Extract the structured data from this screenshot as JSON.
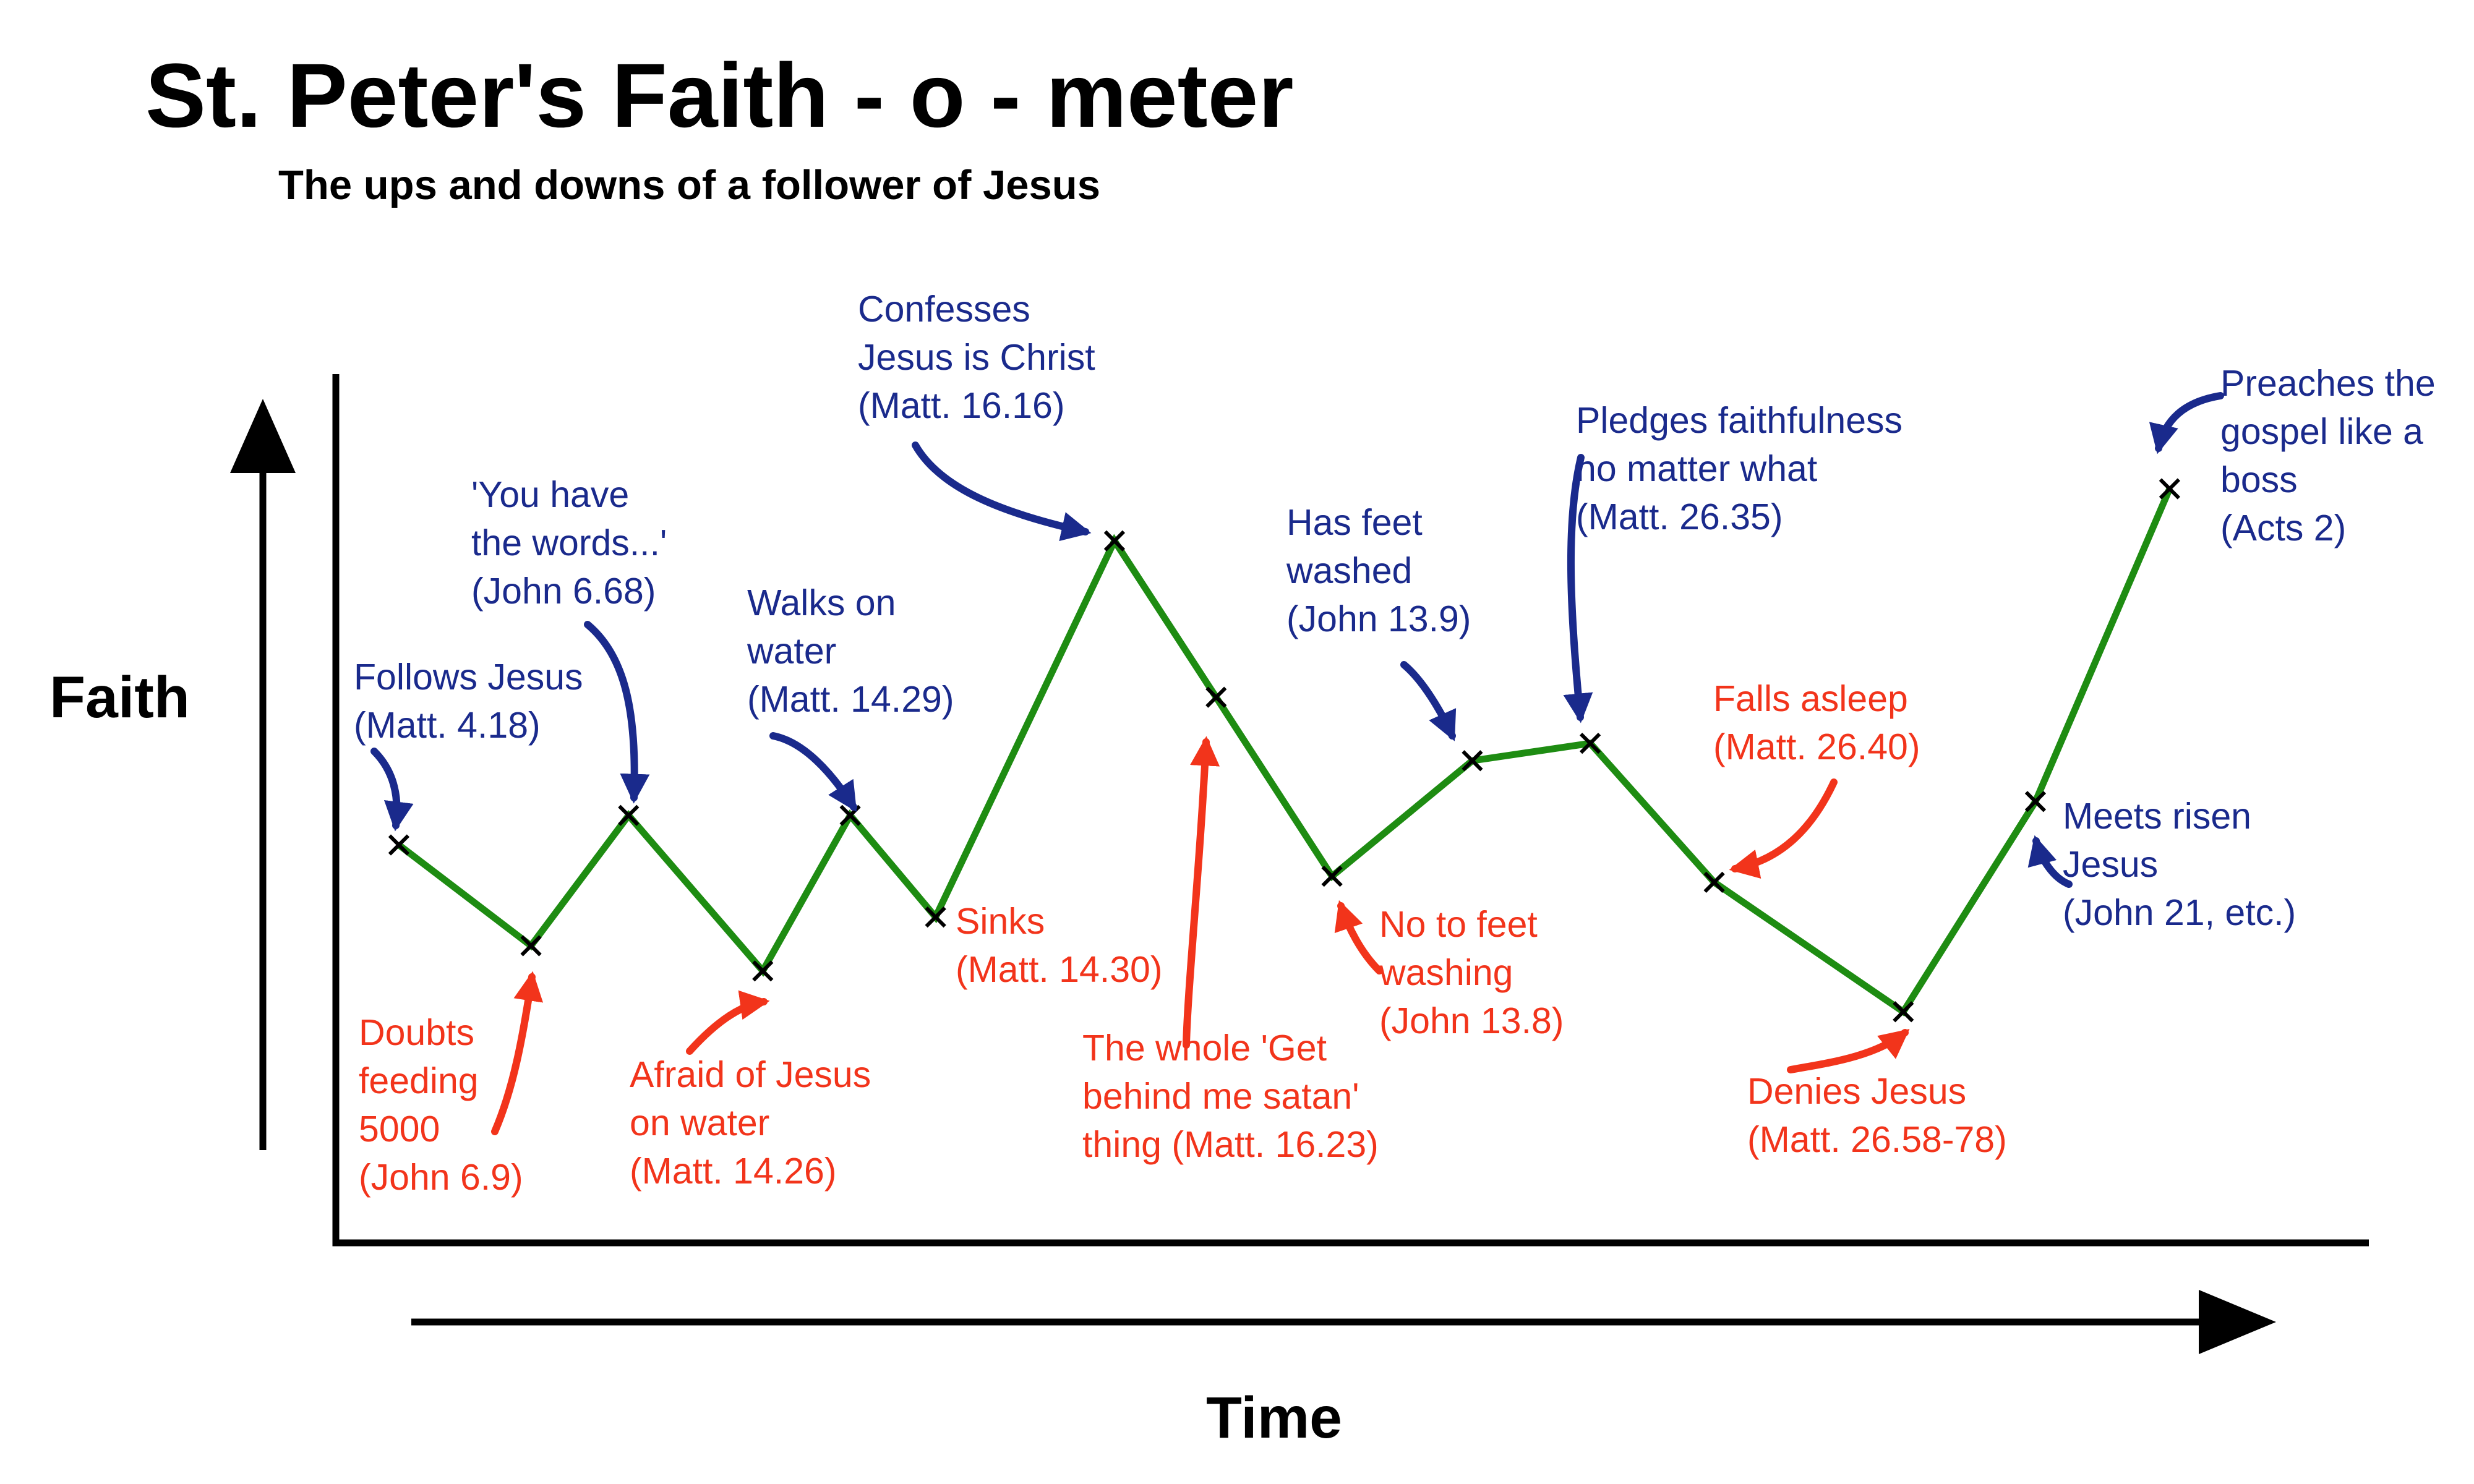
{
  "chart_data": {
    "type": "line",
    "title": "St. Peter's Faith - o - meter",
    "subtitle": "The ups and downs of a follower of Jesus",
    "xlabel": "Time",
    "ylabel": "Faith",
    "grid": false,
    "legend": "none",
    "x_ticks_shown": false,
    "y_ticks_shown": false,
    "line_color": "#1e8c12",
    "marker": "x",
    "high_color": "#1a2a8c",
    "low_color": "#f2341b",
    "points": [
      {
        "label": "Follows Jesus\n(Matt. 4.18)",
        "kind": "high",
        "x": 0.031,
        "y": 0.458
      },
      {
        "label": "Doubts\nfeeding\n5000\n(John 6.9)",
        "kind": "low",
        "x": 0.096,
        "y": 0.342
      },
      {
        "label": "'You have\nthe words...'\n(John 6.68)",
        "kind": "high",
        "x": 0.144,
        "y": 0.492
      },
      {
        "label": "Afraid of Jesus\non water\n(Matt. 14.26)",
        "kind": "low",
        "x": 0.21,
        "y": 0.313
      },
      {
        "label": "Walks on\nwater\n(Matt. 14.29)",
        "kind": "high",
        "x": 0.253,
        "y": 0.492
      },
      {
        "label": "Sinks\n(Matt. 14.30)",
        "kind": "low",
        "x": 0.295,
        "y": 0.375
      },
      {
        "label": "Confesses\nJesus is Christ\n(Matt. 16.16)",
        "kind": "high",
        "x": 0.383,
        "y": 0.808
      },
      {
        "label": "The whole 'Get\nbehind me satan'\nthing (Matt. 16.23)",
        "kind": "low",
        "x": 0.433,
        "y": 0.628
      },
      {
        "label": "No to feet\nwashing\n(John 13.8)",
        "kind": "low",
        "x": 0.49,
        "y": 0.422
      },
      {
        "label": "Has feet\nwashed\n(John 13.9)",
        "kind": "high",
        "x": 0.559,
        "y": 0.555
      },
      {
        "label": "Pledges faithfulness\nno matter what\n(Matt. 26.35)",
        "kind": "high",
        "x": 0.617,
        "y": 0.575
      },
      {
        "label": "Falls asleep\n(Matt. 26.40)",
        "kind": "low",
        "x": 0.678,
        "y": 0.415
      },
      {
        "label": "Denies Jesus\n(Matt. 26.58-78)",
        "kind": "low",
        "x": 0.771,
        "y": 0.266
      },
      {
        "label": "Meets risen\nJesus\n(John 21, etc.)",
        "kind": "high",
        "x": 0.836,
        "y": 0.508
      },
      {
        "label": "Preaches the\ngospel like a\nboss\n(Acts 2)",
        "kind": "high",
        "x": 0.902,
        "y": 0.868
      }
    ]
  }
}
